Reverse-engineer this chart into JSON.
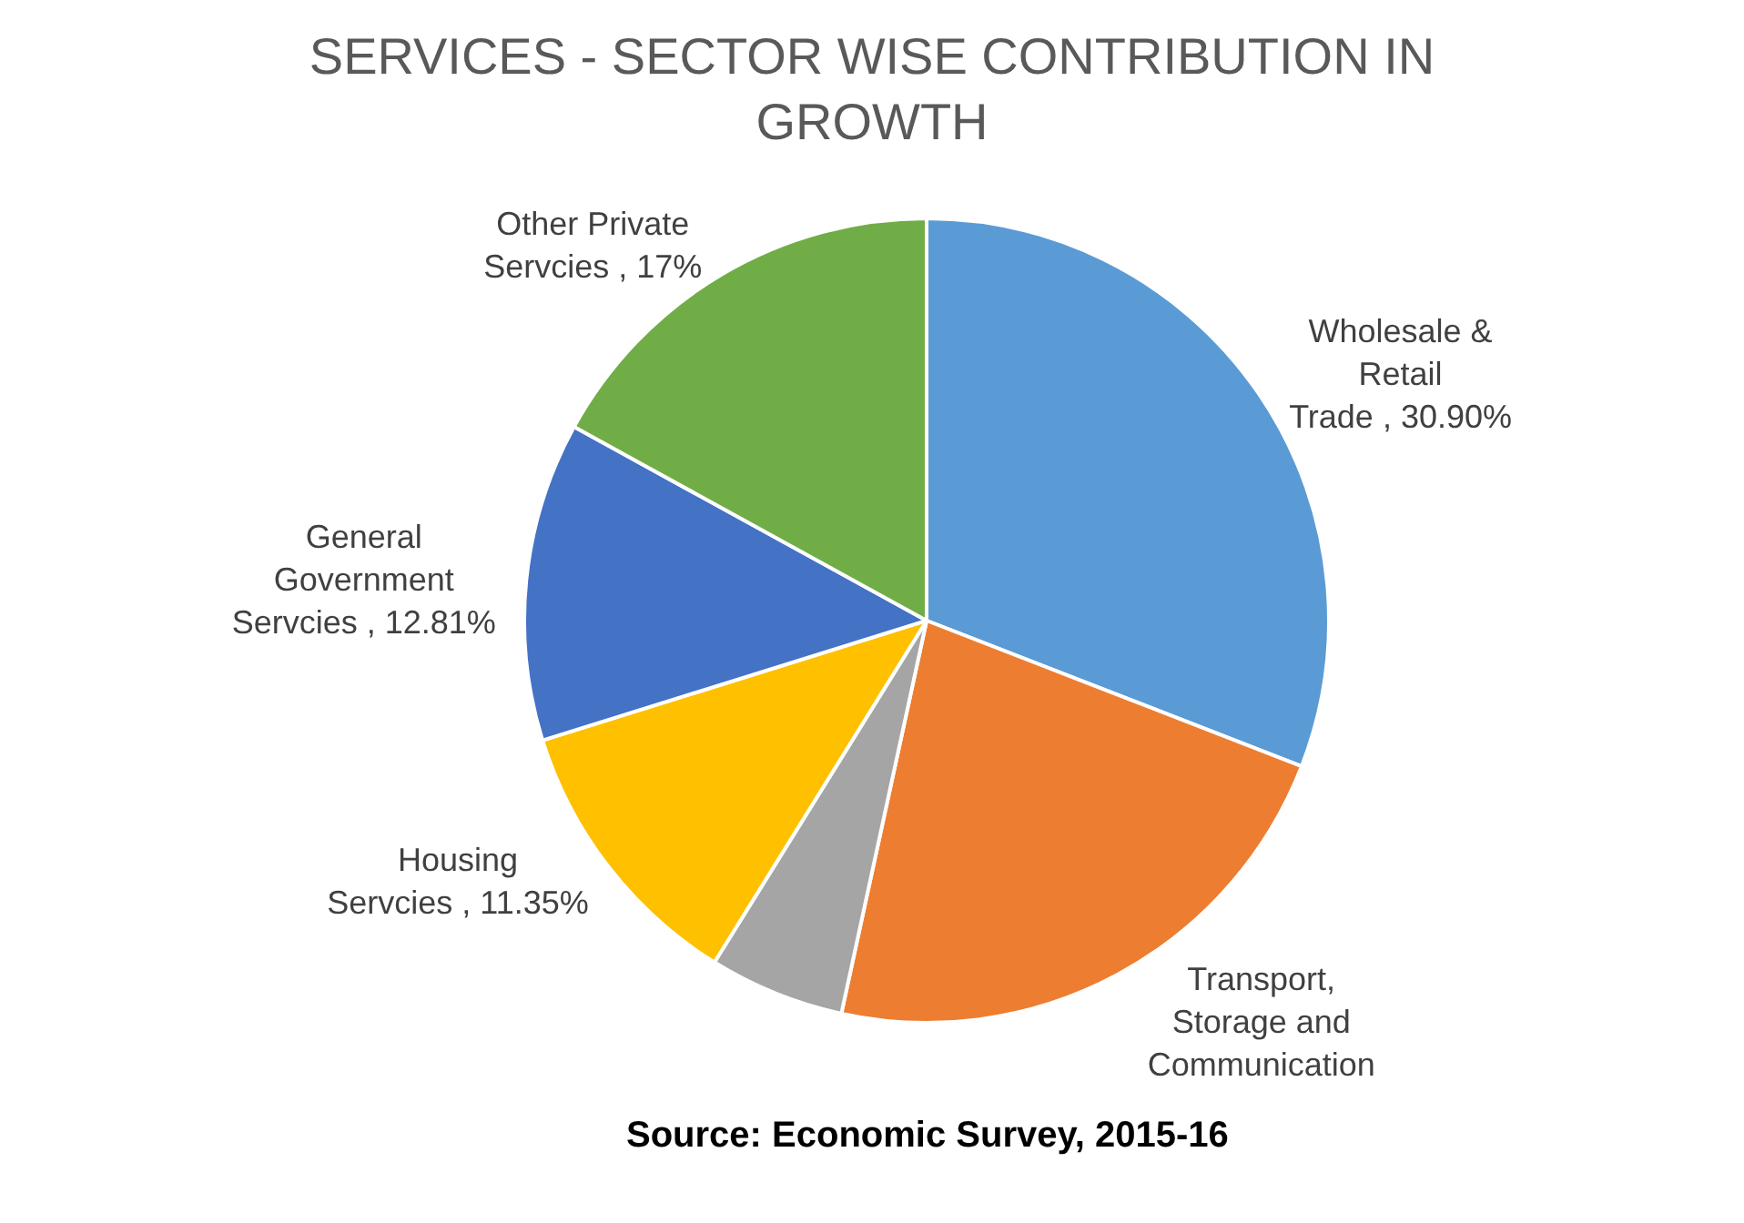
{
  "chart_data": {
    "type": "pie",
    "title": "SERVICES - SECTOR WISE CONTRIBUTION IN GROWTH",
    "categories": [
      "Wholesale & Retail Trade",
      "Transport, Storage and Communication",
      null,
      "Housing Servcies",
      "General Government Servcies",
      "Other Private Servcies"
    ],
    "values": [
      30.9,
      22.5,
      5.44,
      11.35,
      12.81,
      17
    ],
    "value_labels": [
      "30.90%",
      null,
      null,
      "11.35%",
      "12.81%",
      "17%"
    ],
    "colors": [
      "#5b9bd5",
      "#ed7d31",
      "#a5a5a5",
      "#ffc000",
      "#4472c4",
      "#70ad47"
    ],
    "legend": false,
    "annotations": [
      "Source: Economic Survey, 2015-16"
    ]
  }
}
